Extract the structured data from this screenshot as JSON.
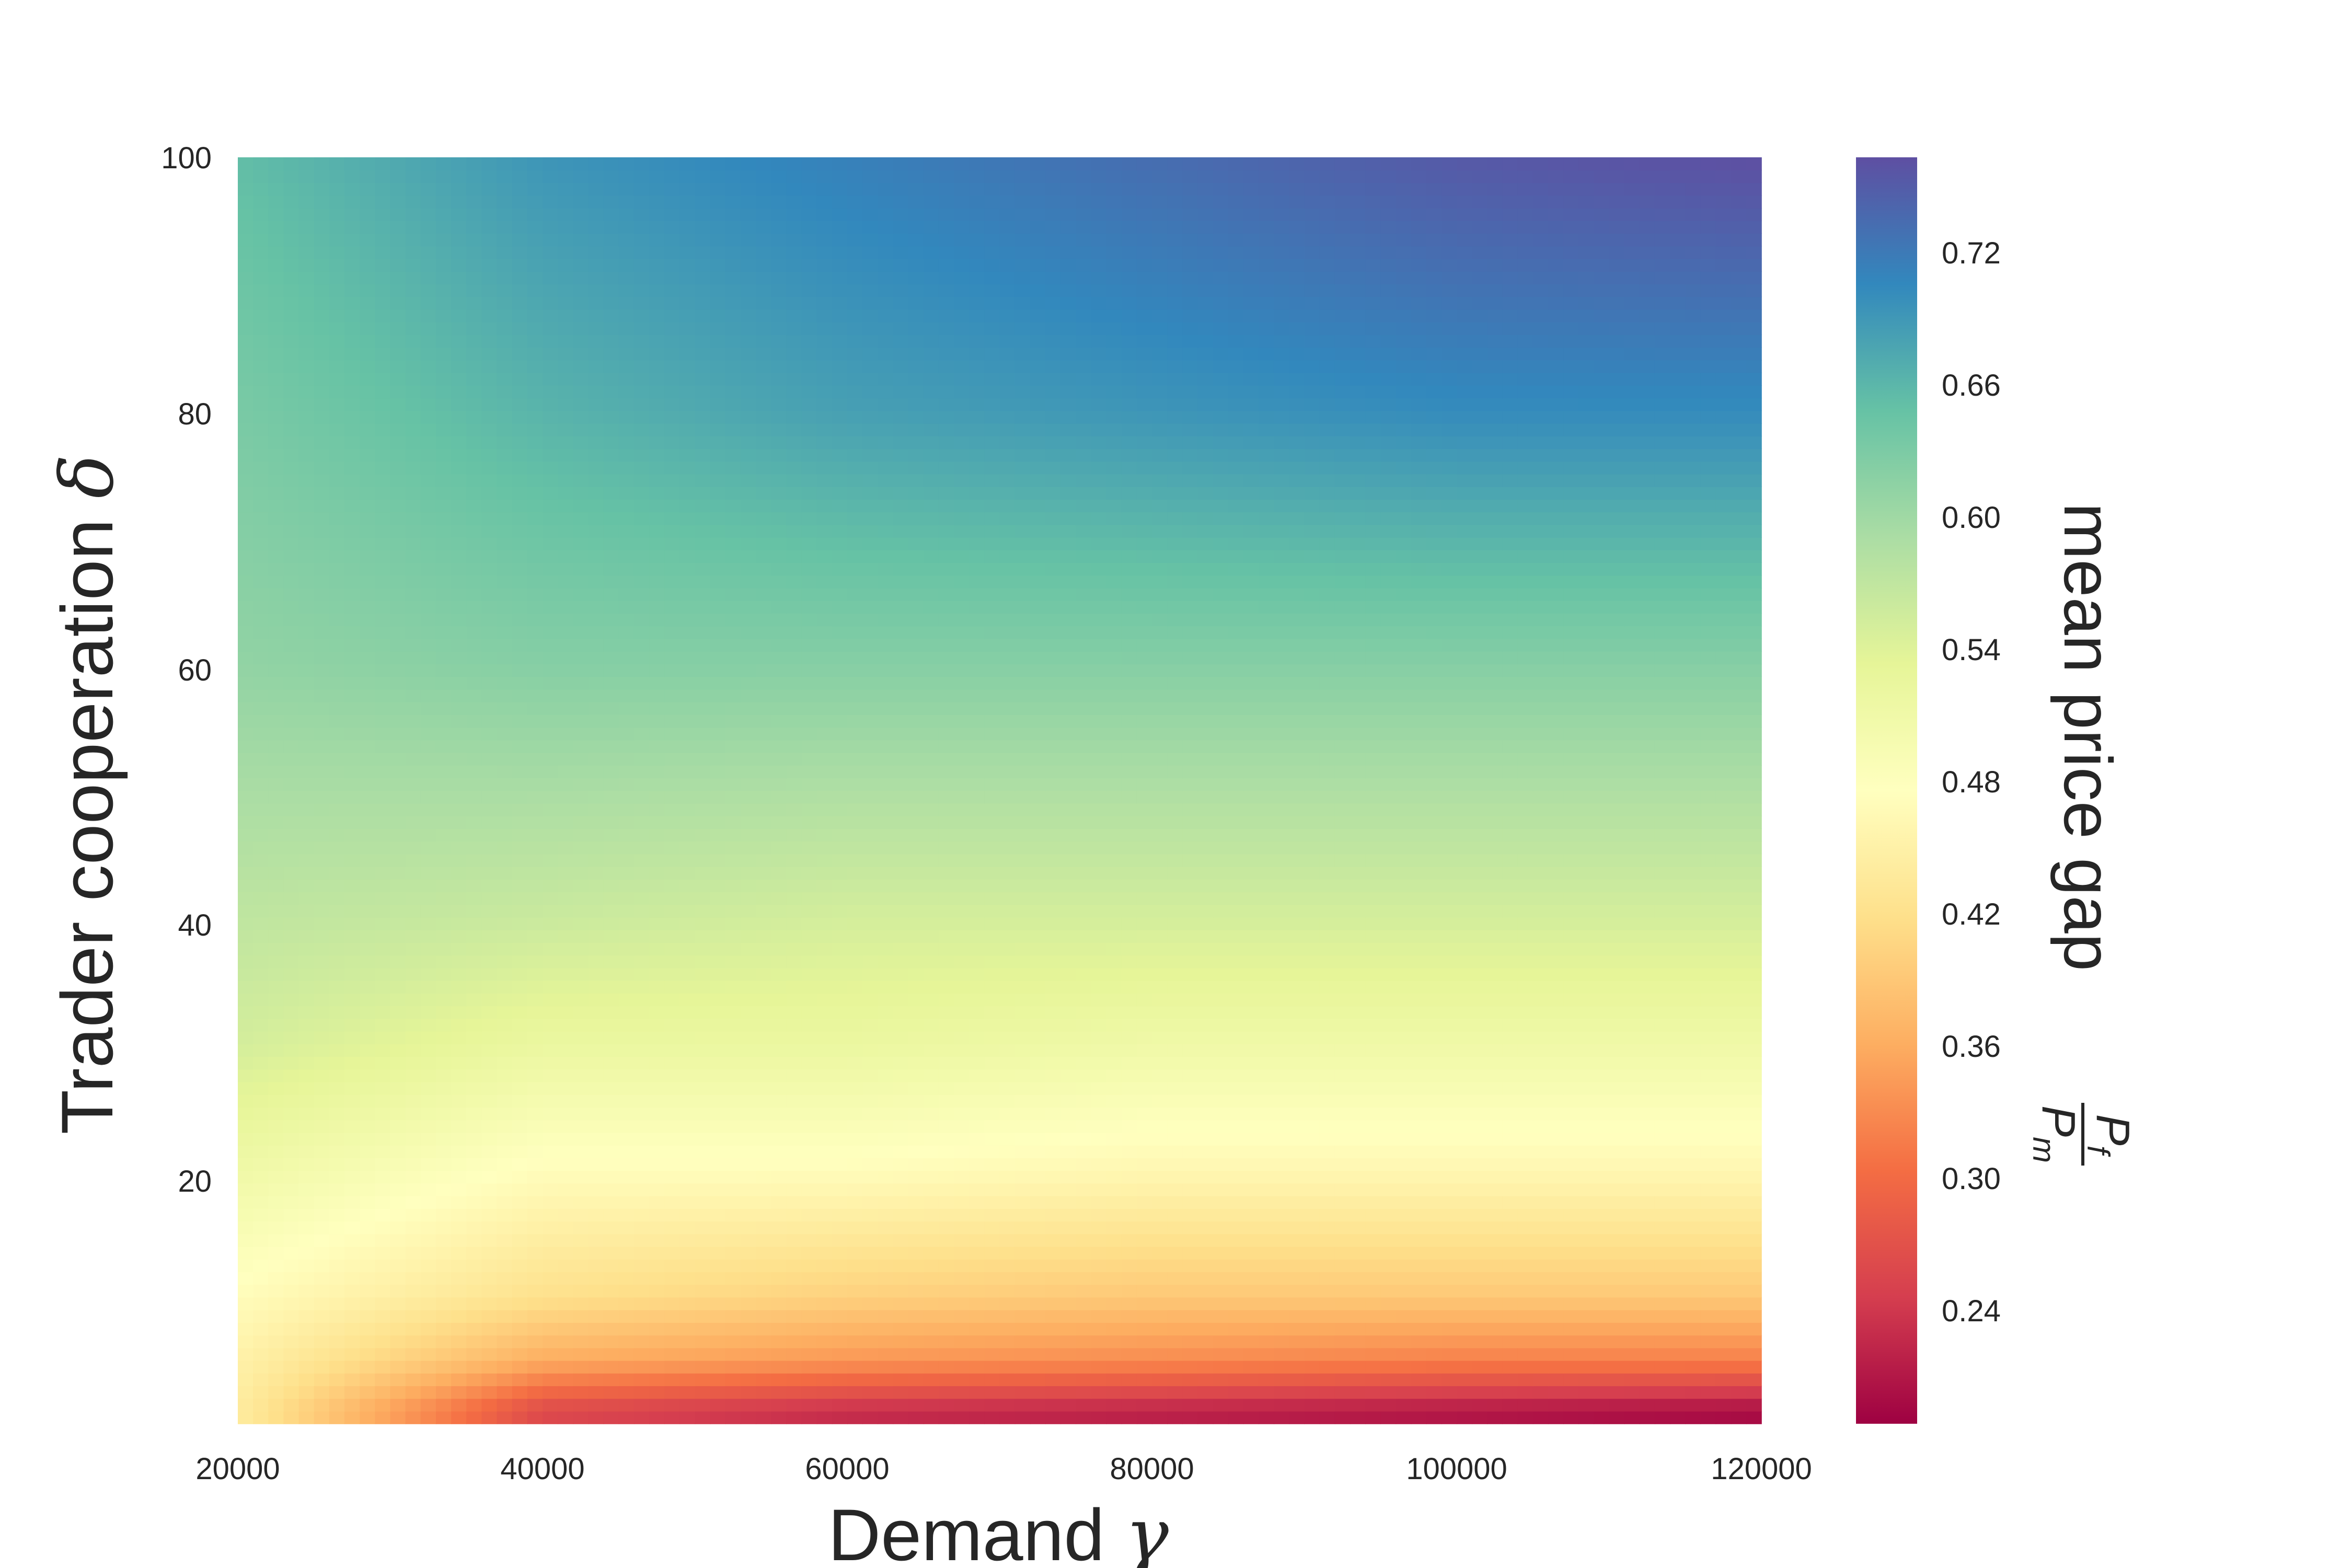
{
  "chart_data": {
    "type": "heatmap",
    "xlabel": "Demand",
    "xlabel_symbol": "γ",
    "ylabel": "Trader cooperation",
    "ylabel_symbol": "δ",
    "xlim": [
      20000,
      120000
    ],
    "ylim": [
      0,
      100
    ],
    "x_ticks": [
      "20000",
      "40000",
      "60000",
      "80000",
      "100000",
      "120000"
    ],
    "y_ticks": [
      "20",
      "40",
      "60",
      "80",
      "100"
    ],
    "colorbar": {
      "label": "mean price gap",
      "label_fraction": {
        "numerator": "P",
        "numerator_sub": "f",
        "denominator": "P",
        "denominator_sub": "m"
      },
      "colormap": "Spectral",
      "range": [
        0.2,
        0.77
      ],
      "ticks": [
        "0.24",
        "0.30",
        "0.36",
        "0.42",
        "0.48",
        "0.54",
        "0.60",
        "0.66",
        "0.72"
      ]
    },
    "grid": false,
    "z_samples": {
      "x": [
        20000,
        40000,
        60000,
        80000,
        100000,
        120000
      ],
      "y": [
        1,
        5,
        10,
        20,
        30,
        40,
        60,
        80,
        100
      ],
      "z": [
        [
          0.45,
          0.27,
          0.24,
          0.23,
          0.22,
          0.21
        ],
        [
          0.46,
          0.37,
          0.35,
          0.34,
          0.33,
          0.33
        ],
        [
          0.48,
          0.43,
          0.41,
          0.4,
          0.4,
          0.4
        ],
        [
          0.52,
          0.48,
          0.48,
          0.47,
          0.47,
          0.47
        ],
        [
          0.56,
          0.53,
          0.53,
          0.52,
          0.52,
          0.52
        ],
        [
          0.58,
          0.57,
          0.56,
          0.56,
          0.56,
          0.56
        ],
        [
          0.62,
          0.63,
          0.63,
          0.63,
          0.63,
          0.63
        ],
        [
          0.64,
          0.67,
          0.69,
          0.7,
          0.71,
          0.71
        ],
        [
          0.66,
          0.7,
          0.72,
          0.74,
          0.76,
          0.77
        ]
      ]
    }
  }
}
